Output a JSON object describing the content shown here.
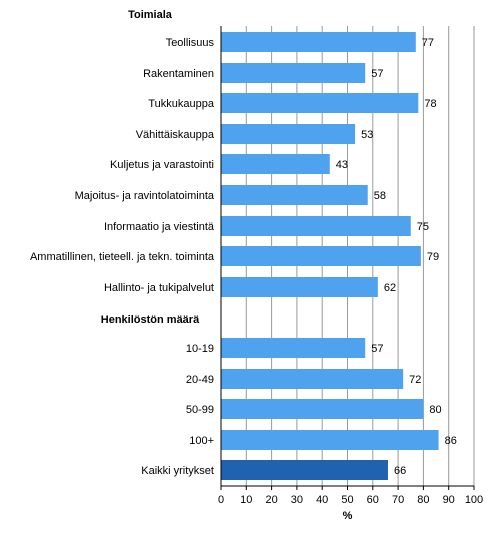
{
  "chart_data": {
    "type": "bar",
    "orientation": "horizontal",
    "xlabel": "%",
    "xlim": [
      0,
      100
    ],
    "xticks": [
      "0",
      "10",
      "20",
      "30",
      "40",
      "50",
      "60",
      "70",
      "80",
      "90",
      "100"
    ],
    "grid": "vertical",
    "colors": {
      "bar": "#4fa3ee",
      "total_bar": "#1f62b0",
      "grid": "#9a9a9a"
    },
    "groups": [
      {
        "label": "Toimiala",
        "rows": [
          {
            "label": "Teollisuus",
            "value": 77,
            "value_label": "77"
          },
          {
            "label": "Rakentaminen",
            "value": 57,
            "value_label": "57"
          },
          {
            "label": "Tukkukauppa",
            "value": 78,
            "value_label": "78"
          },
          {
            "label": "Vähittäiskauppa",
            "value": 53,
            "value_label": "53"
          },
          {
            "label": "Kuljetus ja varastointi",
            "value": 43,
            "value_label": "43"
          },
          {
            "label": "Majoitus- ja ravintolatoiminta",
            "value": 58,
            "value_label": "58"
          },
          {
            "label": "Informaatio ja viestintä",
            "value": 75,
            "value_label": "75"
          },
          {
            "label": "Ammatillinen, tieteell. ja tekn. toiminta",
            "value": 79,
            "value_label": "79"
          },
          {
            "label": "Hallinto- ja tukipalvelut",
            "value": 62,
            "value_label": "62"
          }
        ]
      },
      {
        "label": "Henkilöstön määrä",
        "rows": [
          {
            "label": "10-19",
            "value": 57,
            "value_label": "57"
          },
          {
            "label": "20-49",
            "value": 72,
            "value_label": "72"
          },
          {
            "label": "50-99",
            "value": 80,
            "value_label": "80"
          },
          {
            "label": "100+",
            "value": 86,
            "value_label": "86"
          }
        ]
      },
      {
        "label": "",
        "rows": [
          {
            "label": "Kaikki yritykset",
            "value": 66,
            "value_label": "66",
            "highlight": true
          }
        ]
      }
    ]
  }
}
